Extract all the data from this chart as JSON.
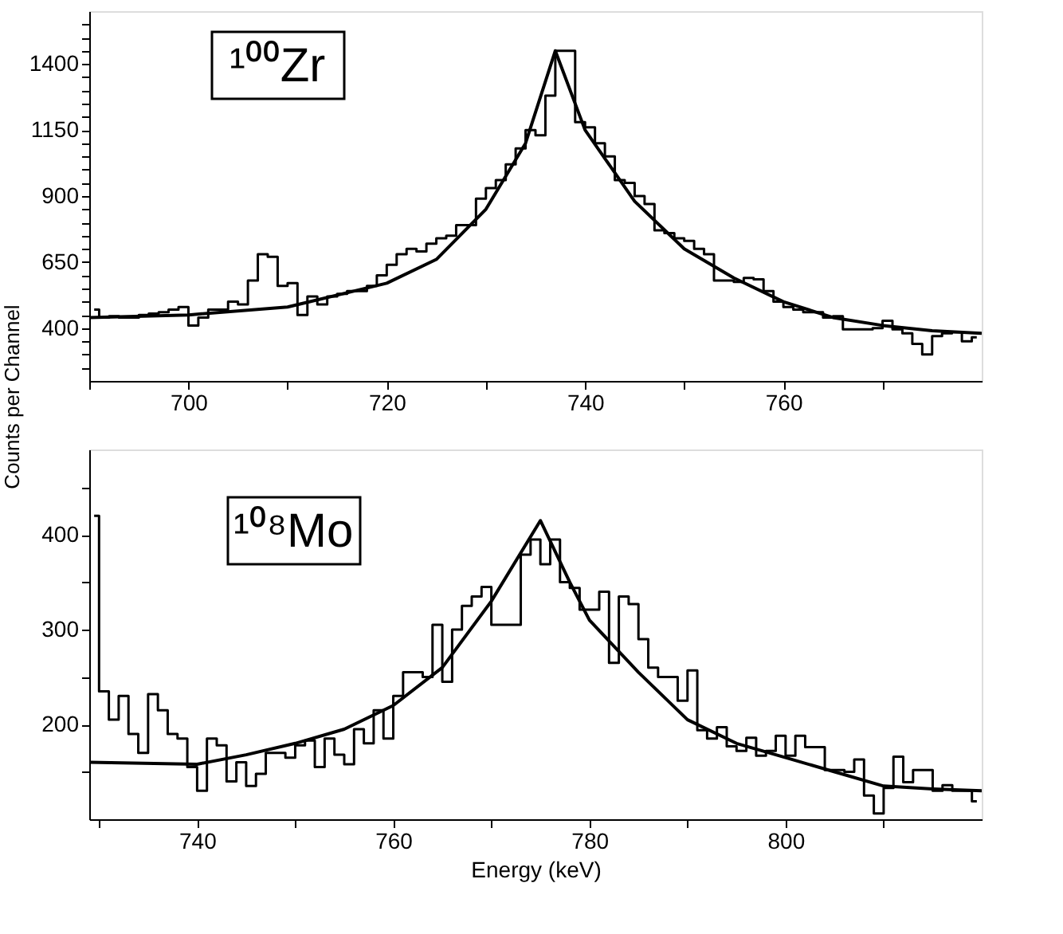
{
  "chart_data": [
    {
      "type": "step",
      "ylabel": "Counts per Channel",
      "annotations": [
        "¹⁰⁰Zr"
      ],
      "xlim": [
        690,
        780
      ],
      "ylim": [
        200,
        1600
      ],
      "xticks": [
        {
          "value": 690,
          "label": null
        },
        700,
        {
          "value": 710,
          "label": null
        },
        720,
        {
          "value": 730,
          "label": null
        },
        740,
        {
          "value": 750,
          "label": null
        },
        760,
        {
          "value": 770,
          "label": null
        }
      ],
      "yticks": [
        {
          "value": 250,
          "label": null
        },
        {
          "value": 300,
          "label": null
        },
        {
          "value": 350,
          "label": null
        },
        400,
        {
          "value": 450,
          "label": null
        },
        {
          "value": 500,
          "label": null
        },
        {
          "value": 550,
          "label": null
        },
        {
          "value": 600,
          "label": null
        },
        650,
        {
          "value": 700,
          "label": null
        },
        {
          "value": 750,
          "label": null
        },
        {
          "value": 800,
          "label": null
        },
        {
          "value": 850,
          "label": null
        },
        900,
        {
          "value": 950,
          "label": null
        },
        {
          "value": 1000,
          "label": null
        },
        {
          "value": 1050,
          "label": null
        },
        {
          "value": 1100,
          "label": null
        },
        1150,
        {
          "value": 1200,
          "label": null
        },
        {
          "value": 1250,
          "label": null
        },
        {
          "value": 1300,
          "label": null
        },
        {
          "value": 1350,
          "label": null
        },
        1400,
        {
          "value": 1450,
          "label": null
        },
        {
          "value": 1500,
          "label": null
        },
        {
          "value": 1550,
          "label": null
        }
      ],
      "series": [
        {
          "color": "#000000",
          "x": [
            690.5,
            691.5,
            692.5,
            693.5,
            694.5,
            695.5,
            696.5,
            697.5,
            698.5,
            699.5,
            700.5,
            701.5,
            702.5,
            703.5,
            704.5,
            705.5,
            706.5,
            707.5,
            708.5,
            709.5,
            710.5,
            711.5,
            712.5,
            713.5,
            714.5,
            715.5,
            716.5,
            717.5,
            718.5,
            719.5,
            720.5,
            721.5,
            722.5,
            723.5,
            724.5,
            725.5,
            726.5,
            727.5,
            728.5,
            729.5,
            730.5,
            731.5,
            732.5,
            733.5,
            734.5,
            735.5,
            736.5,
            737.5,
            738.5,
            739.5,
            740.5,
            741.5,
            742.5,
            743.5,
            744.5,
            745.5,
            746.5,
            747.5,
            748.5,
            749.5,
            750.5,
            751.5,
            752.5,
            753.5,
            754.5,
            755.5,
            756.5,
            757.5,
            758.5,
            759.5,
            760.5,
            761.5,
            762.5,
            763.5,
            764.5,
            765.5,
            766.5,
            767.5,
            768.5,
            769.5,
            770.5,
            771.5,
            772.5,
            773.5,
            774.5,
            775.5,
            776.5,
            777.5,
            778.5,
            779.5
          ],
          "values": [
            470,
            440,
            445,
            440,
            440,
            450,
            455,
            460,
            470,
            480,
            410,
            440,
            470,
            470,
            500,
            490,
            580,
            680,
            670,
            560,
            570,
            450,
            520,
            490,
            520,
            530,
            540,
            540,
            560,
            600,
            640,
            680,
            700,
            690,
            720,
            740,
            750,
            790,
            790,
            890,
            930,
            960,
            1020,
            1080,
            1150,
            1130,
            1280,
            1450,
            1450,
            1180,
            1160,
            1100,
            1050,
            960,
            950,
            900,
            870,
            770,
            760,
            740,
            730,
            700,
            680,
            580,
            580,
            575,
            590,
            585,
            540,
            500,
            480,
            470,
            460,
            460,
            440,
            445,
            395,
            395,
            395,
            400,
            428,
            395,
            380,
            340,
            300,
            370,
            380,
            385,
            350,
            365
          ]
        },
        {
          "type": "line",
          "color": "#000000",
          "x": [
            690,
            700,
            710,
            720,
            725,
            730,
            734,
            737,
            740,
            745,
            750,
            755,
            760,
            765,
            770,
            775,
            780
          ],
          "values": [
            440,
            450,
            480,
            570,
            660,
            850,
            1100,
            1450,
            1150,
            880,
            700,
            590,
            500,
            440,
            410,
            390,
            380
          ]
        }
      ]
    },
    {
      "type": "step",
      "xlabel": "Energy (keV)",
      "annotations": [
        "¹⁰⁸Mo"
      ],
      "xlim": [
        729,
        820
      ],
      "ylim": [
        100,
        490
      ],
      "xticks": [
        {
          "value": 730,
          "label": null
        },
        740,
        {
          "value": 750,
          "label": null
        },
        760,
        {
          "value": 770,
          "label": null
        },
        780,
        {
          "value": 790,
          "label": null
        },
        800,
        {
          "value": 810,
          "label": null
        }
      ],
      "yticks": [
        {
          "value": 150,
          "label": null
        },
        200,
        {
          "value": 250,
          "label": null
        },
        300,
        {
          "value": 350,
          "label": null
        },
        400,
        {
          "value": 450,
          "label": null
        }
      ],
      "series": [
        {
          "color": "#000000",
          "x": [
            729.5,
            730.5,
            731.5,
            732.5,
            733.5,
            734.5,
            735.5,
            736.5,
            737.5,
            738.5,
            739.5,
            740.5,
            741.5,
            742.5,
            743.5,
            744.5,
            745.5,
            746.5,
            747.5,
            748.5,
            749.5,
            750.5,
            751.5,
            752.5,
            753.5,
            754.5,
            755.5,
            756.5,
            757.5,
            758.5,
            759.5,
            760.5,
            761.5,
            762.5,
            763.5,
            764.5,
            765.5,
            766.5,
            767.5,
            768.5,
            769.5,
            770.5,
            771.5,
            772.5,
            773.5,
            774.5,
            775.5,
            776.5,
            777.5,
            778.5,
            779.5,
            780.5,
            781.5,
            782.5,
            783.5,
            784.5,
            785.5,
            786.5,
            787.5,
            788.5,
            789.5,
            790.5,
            791.5,
            792.5,
            793.5,
            794.5,
            795.5,
            796.5,
            797.5,
            798.5,
            799.5,
            800.5,
            801.5,
            802.5,
            803.5,
            804.5,
            805.5,
            806.5,
            807.5,
            808.5,
            809.5,
            810.5,
            811.5,
            812.5,
            813.5,
            814.5,
            815.5,
            816.5,
            817.5,
            818.5,
            819.5
          ],
          "values": [
            420,
            235,
            205,
            230,
            190,
            170,
            232,
            215,
            190,
            185,
            155,
            130,
            185,
            178,
            140,
            160,
            135,
            148,
            170,
            170,
            165,
            178,
            183,
            155,
            185,
            168,
            158,
            195,
            180,
            215,
            185,
            230,
            255,
            255,
            250,
            305,
            245,
            300,
            325,
            335,
            345,
            305,
            305,
            305,
            379,
            395,
            369,
            395,
            350,
            344,
            321,
            321,
            340,
            265,
            335,
            327,
            290,
            260,
            250,
            250,
            225,
            257,
            194,
            185,
            197,
            177,
            172,
            186,
            167,
            172,
            188,
            167,
            188,
            176,
            176,
            152,
            152,
            150,
            163,
            125,
            106,
            133,
            166,
            139,
            152,
            152,
            130,
            136,
            130,
            130,
            119
          ]
        },
        {
          "type": "line",
          "color": "#000000",
          "x": [
            729,
            740,
            745,
            750,
            755,
            760,
            765,
            770,
            775,
            778,
            780,
            785,
            790,
            795,
            800,
            805,
            810,
            815,
            820
          ],
          "values": [
            160,
            158,
            168,
            180,
            195,
            220,
            260,
            330,
            415,
            350,
            310,
            255,
            205,
            180,
            165,
            150,
            135,
            132,
            130
          ]
        }
      ]
    }
  ]
}
